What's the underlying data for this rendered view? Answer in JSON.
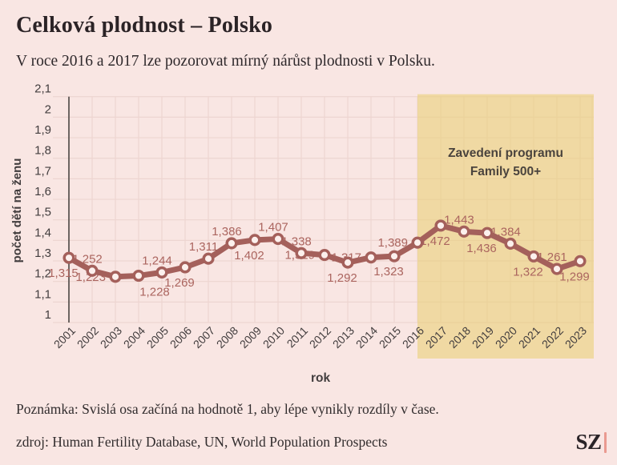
{
  "header": {
    "title": "Celková plodnost – Polsko",
    "subtitle": "V roce 2016 a 2017 lze pozorovat mírný nárůst plodnosti v Polsku."
  },
  "chart_data": {
    "type": "line",
    "title": "Celková plodnost – Polsko",
    "xlabel": "rok",
    "ylabel": "počet dětí na ženu",
    "ylim": [
      1,
      2.1
    ],
    "ytick_step": 0.1,
    "ytick_labels": [
      "1",
      "1,1",
      "1,2",
      "1,3",
      "1,4",
      "1,5",
      "1,6",
      "1,7",
      "1,8",
      "1,9",
      "2",
      "2,1"
    ],
    "grid": true,
    "x": [
      2001,
      2002,
      2003,
      2004,
      2005,
      2006,
      2007,
      2008,
      2009,
      2010,
      2011,
      2012,
      2013,
      2014,
      2015,
      2016,
      2017,
      2018,
      2019,
      2020,
      2021,
      2022,
      2023
    ],
    "values": [
      1.315,
      1.252,
      1.223,
      1.228,
      1.244,
      1.269,
      1.311,
      1.386,
      1.402,
      1.407,
      1.338,
      1.329,
      1.292,
      1.317,
      1.323,
      1.389,
      1.472,
      1.443,
      1.436,
      1.384,
      1.322,
      1.261,
      1.299
    ],
    "point_labels": [
      "1,315",
      "1,252",
      "1,223",
      "1,228",
      "1,244",
      "1,269",
      "1,311",
      "1,386",
      "1,402",
      "1,407",
      "1,338",
      "1,329",
      "1,292",
      "1,317",
      "1,323",
      "1,389",
      "1,472",
      "1,443",
      "1,436",
      "1,384",
      "1,322",
      "1,261",
      "1,299"
    ],
    "label_placement": [
      "below",
      "above",
      "left",
      "below-right",
      "above",
      "below",
      "above",
      "above",
      "below",
      "above",
      "above",
      "left",
      "below",
      "left",
      "below",
      "left",
      "below",
      "above",
      "below",
      "above",
      "below",
      "above",
      "below"
    ],
    "highlight": {
      "from_year": 2016,
      "annotation_line1": "Zavedení programu",
      "annotation_line2": "Family 500+"
    }
  },
  "colors": {
    "background": "#f9e6e3",
    "grid": "#edd5d1",
    "highlight_fill": "#ead078",
    "axis_line": "#5d5754",
    "line": "#a4605b",
    "marker_fill": "#fcf0ed",
    "point_label": "#ab655f",
    "axis_text": "#423d3e",
    "annotation_text": "#4a433d",
    "logo_bar": "#ea9a90"
  },
  "footer": {
    "note": "Poznámka: Svislá osa začíná na hodnotě 1, aby lépe vynikly rozdíly v čase.",
    "source": "zdroj: Human Fertility Database, UN, World Population Prospects",
    "logo": "SZ"
  }
}
